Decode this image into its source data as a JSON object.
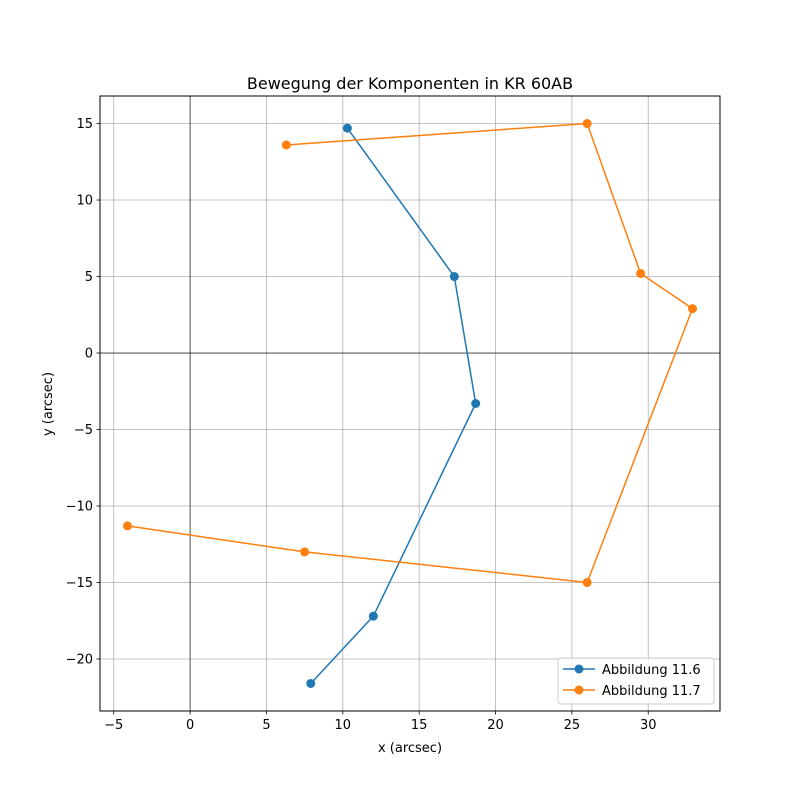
{
  "chart_data": {
    "type": "line",
    "title": "Bewegung der Komponenten in KR 60AB",
    "xlabel": "x (arcsec)",
    "ylabel": "y (arcsec)",
    "xlim": [
      -5.9,
      34.7
    ],
    "ylim": [
      -23.4,
      16.8
    ],
    "xticks": [
      -5,
      0,
      5,
      10,
      15,
      20,
      25,
      30
    ],
    "yticks": [
      -20,
      -15,
      -10,
      -5,
      0,
      5,
      10,
      15
    ],
    "grid": true,
    "zero_lines": true,
    "legend_position": "lower-right",
    "series": [
      {
        "name": "Abbildung 11.6",
        "color": "#1f77b4",
        "marker": "circle",
        "x": [
          7.9,
          12.0,
          18.7,
          17.3,
          10.3
        ],
        "y": [
          -21.6,
          -17.2,
          -3.3,
          5.0,
          14.7
        ]
      },
      {
        "name": "Abbildung 11.7",
        "color": "#ff7f0e",
        "marker": "circle",
        "x": [
          -4.1,
          7.5,
          26.0,
          32.9,
          29.5,
          26.0,
          6.3
        ],
        "y": [
          -11.3,
          -13.0,
          -15.0,
          2.9,
          5.2,
          15.0,
          13.6
        ]
      }
    ]
  }
}
